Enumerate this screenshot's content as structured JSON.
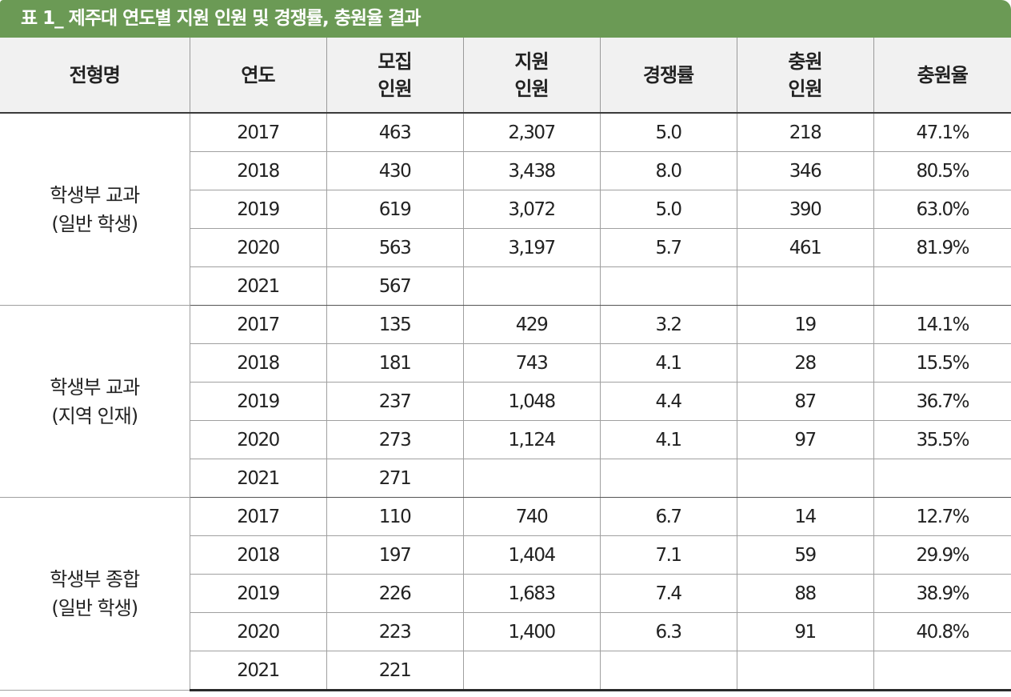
{
  "title": "표 1_ 제주대 연도별 지원 인원 및 경쟁률, 충원율 결과",
  "colors": {
    "title_bar": "#6b9a55",
    "header_bg": "#f1f1f1",
    "grid": "#a0a0a0"
  },
  "header": {
    "col0": [
      "전형명"
    ],
    "col1": [
      "연도"
    ],
    "col2": [
      "모집",
      "인원"
    ],
    "col3": [
      "지원",
      "인원"
    ],
    "col4": [
      "경쟁률"
    ],
    "col5": [
      "충원",
      "인원"
    ],
    "col6": [
      "충원율"
    ]
  },
  "groups": [
    {
      "label": [
        "학생부 교과",
        "(일반 학생)"
      ],
      "rows": [
        {
          "year": "2017",
          "quota": "463",
          "applicants": "2,307",
          "competition": "5.0",
          "filled": "218",
          "fill_rate": "47.1%"
        },
        {
          "year": "2018",
          "quota": "430",
          "applicants": "3,438",
          "competition": "8.0",
          "filled": "346",
          "fill_rate": "80.5%"
        },
        {
          "year": "2019",
          "quota": "619",
          "applicants": "3,072",
          "competition": "5.0",
          "filled": "390",
          "fill_rate": "63.0%"
        },
        {
          "year": "2020",
          "quota": "563",
          "applicants": "3,197",
          "competition": "5.7",
          "filled": "461",
          "fill_rate": "81.9%"
        },
        {
          "year": "2021",
          "quota": "567",
          "applicants": "",
          "competition": "",
          "filled": "",
          "fill_rate": ""
        }
      ]
    },
    {
      "label": [
        "학생부 교과",
        "(지역 인재)"
      ],
      "rows": [
        {
          "year": "2017",
          "quota": "135",
          "applicants": "429",
          "competition": "3.2",
          "filled": "19",
          "fill_rate": "14.1%"
        },
        {
          "year": "2018",
          "quota": "181",
          "applicants": "743",
          "competition": "4.1",
          "filled": "28",
          "fill_rate": "15.5%"
        },
        {
          "year": "2019",
          "quota": "237",
          "applicants": "1,048",
          "competition": "4.4",
          "filled": "87",
          "fill_rate": "36.7%"
        },
        {
          "year": "2020",
          "quota": "273",
          "applicants": "1,124",
          "competition": "4.1",
          "filled": "97",
          "fill_rate": "35.5%"
        },
        {
          "year": "2021",
          "quota": "271",
          "applicants": "",
          "competition": "",
          "filled": "",
          "fill_rate": ""
        }
      ]
    },
    {
      "label": [
        "학생부 종합",
        "(일반 학생)"
      ],
      "rows": [
        {
          "year": "2017",
          "quota": "110",
          "applicants": "740",
          "competition": "6.7",
          "filled": "14",
          "fill_rate": "12.7%"
        },
        {
          "year": "2018",
          "quota": "197",
          "applicants": "1,404",
          "competition": "7.1",
          "filled": "59",
          "fill_rate": "29.9%"
        },
        {
          "year": "2019",
          "quota": "226",
          "applicants": "1,683",
          "competition": "7.4",
          "filled": "88",
          "fill_rate": "38.9%"
        },
        {
          "year": "2020",
          "quota": "223",
          "applicants": "1,400",
          "competition": "6.3",
          "filled": "91",
          "fill_rate": "40.8%"
        },
        {
          "year": "2021",
          "quota": "221",
          "applicants": "",
          "competition": "",
          "filled": "",
          "fill_rate": ""
        }
      ]
    }
  ]
}
